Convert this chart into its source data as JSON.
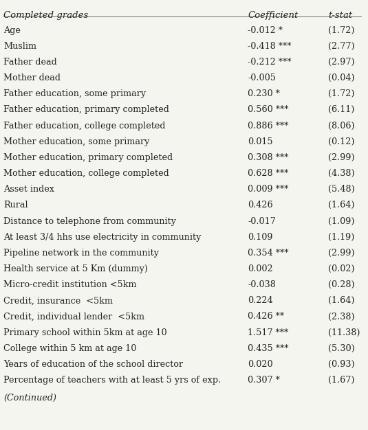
{
  "header_left": "Completed grades",
  "header_mid": "Coefficient",
  "header_right": "t-stat",
  "rows": [
    [
      "Age",
      "-0.012 *",
      "(1.72)"
    ],
    [
      "Muslim",
      "-0.418 ***",
      "(2.77)"
    ],
    [
      "Father dead",
      "-0.212 ***",
      "(2.97)"
    ],
    [
      "Mother dead",
      "-0.005",
      "(0.04)"
    ],
    [
      "Father education, some primary",
      "0.230 *",
      "(1.72)"
    ],
    [
      "Father education, primary completed",
      "0.560 ***",
      "(6.11)"
    ],
    [
      "Father education, college completed",
      "0.886 ***",
      "(8.06)"
    ],
    [
      "Mother education, some primary",
      "0.015",
      "(0.12)"
    ],
    [
      "Mother education, primary completed",
      "0.308 ***",
      "(2.99)"
    ],
    [
      "Mother education, college completed",
      "0.628 ***",
      "(4.38)"
    ],
    [
      "Asset index",
      "0.009 ***",
      "(5.48)"
    ],
    [
      "Rural",
      "0.426",
      "(1.64)"
    ],
    [
      "Distance to telephone from community",
      "-0.017",
      "(1.09)"
    ],
    [
      "At least 3/4 hhs use electricity in community",
      "0.109",
      "(1.19)"
    ],
    [
      "Pipeline network in the community",
      "0.354 ***",
      "(2.99)"
    ],
    [
      "Health service at 5 Km (dummy)",
      "0.002",
      "(0.02)"
    ],
    [
      "Micro-credit institution <5km",
      "-0.038",
      "(0.28)"
    ],
    [
      "Credit, insurance  <5km",
      "0.224",
      "(1.64)"
    ],
    [
      "Credit, individual lender  <5km",
      "0.426 **",
      "(2.38)"
    ],
    [
      "Primary school within 5km at age 10",
      "1.517 ***",
      "(11.38)"
    ],
    [
      "College within 5 km at age 10",
      "0.435 ***",
      "(5.30)"
    ],
    [
      "Years of education of the school director",
      "0.020",
      "(0.93)"
    ],
    [
      "Percentage of teachers with at least 5 yrs of exp.",
      "0.307 *",
      "(1.67)"
    ]
  ],
  "footer": "(Continued)",
  "bg_color": "#f5f5f0",
  "text_color": "#222222",
  "header_color": "#222222",
  "font_size": 9.2,
  "header_font_size": 9.5
}
